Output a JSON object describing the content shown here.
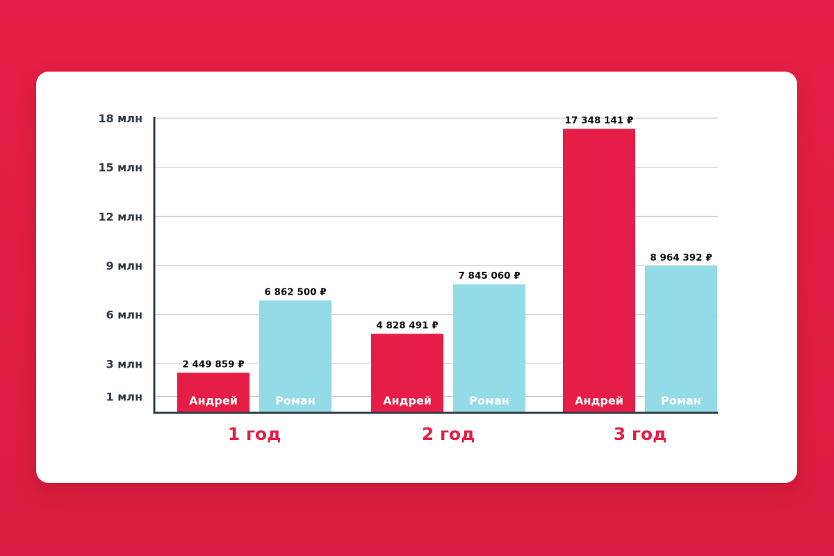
{
  "colors": {
    "background": "#e61e45",
    "andrey_bar": "#e61e45",
    "roman_bar": "#93dbe6",
    "year_label": "#e61e45",
    "axis": "#2e3a45",
    "grid": "#c9cdd1"
  },
  "chart_data": {
    "type": "bar",
    "ylim": [
      0,
      18000000
    ],
    "y_ticks": [
      {
        "value": 1000000,
        "label": "1 млн"
      },
      {
        "value": 3000000,
        "label": "3 млн"
      },
      {
        "value": 6000000,
        "label": "6 млн"
      },
      {
        "value": 9000000,
        "label": "9 млн"
      },
      {
        "value": 12000000,
        "label": "12 млн"
      },
      {
        "value": 15000000,
        "label": "15 млн"
      },
      {
        "value": 18000000,
        "label": "18 млн"
      }
    ],
    "grid": true,
    "categories": [
      "1 год",
      "2 год",
      "3 год"
    ],
    "series": [
      {
        "name": "Андрей",
        "color": "#e61e45",
        "values": [
          2449859,
          4828491,
          17348141
        ],
        "value_labels": [
          "2 449 859 ₽",
          "4 828 491 ₽",
          "17 348 141 ₽"
        ]
      },
      {
        "name": "Роман",
        "color": "#93dbe6",
        "values": [
          6862500,
          7845060,
          8964392
        ],
        "value_labels": [
          "6 862 500 ₽",
          "7 845 060 ₽",
          "8 964 392 ₽"
        ]
      }
    ]
  }
}
